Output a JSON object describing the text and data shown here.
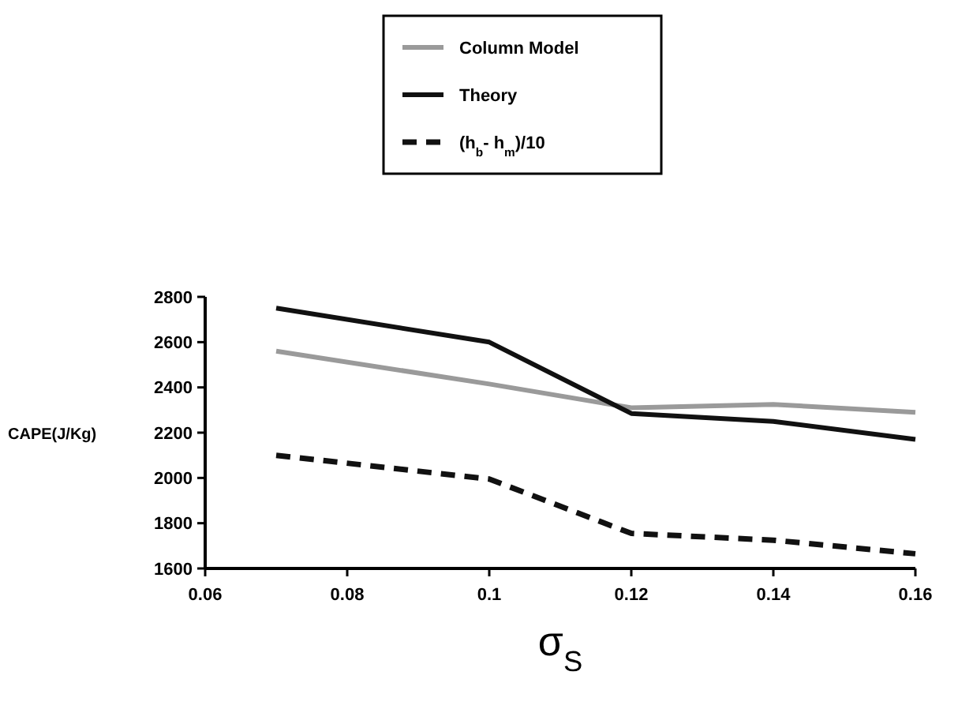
{
  "chart_data": {
    "type": "line",
    "xlabel": "σ$_{S}$",
    "ylabel": "CAPE(J/Kg)",
    "x": [
      0.07,
      0.1,
      0.12,
      0.14,
      0.16
    ],
    "xlim": [
      0.06,
      0.16
    ],
    "xticks": [
      0.06,
      0.08,
      0.1,
      0.12,
      0.14,
      0.16
    ],
    "ylim": [
      1600,
      2800
    ],
    "yticks": [
      1600,
      1800,
      2000,
      2200,
      2400,
      2600,
      2800
    ],
    "grid": false,
    "legend": "top",
    "series": [
      {
        "name": "Column Model",
        "color": "#9a9a9a",
        "values": [
          2560,
          2415,
          2310,
          2325,
          2290
        ],
        "line_style": "solid"
      },
      {
        "name": "Theory",
        "color": "#111111",
        "values": [
          2750,
          2600,
          2285,
          2250,
          2170
        ],
        "line_style": "solid"
      },
      {
        "name": "(h$_{b}$- h$_{m}$)/10",
        "color": "#111111",
        "values": [
          2100,
          1995,
          1755,
          1725,
          1665
        ],
        "line_style": "dashed"
      }
    ]
  }
}
